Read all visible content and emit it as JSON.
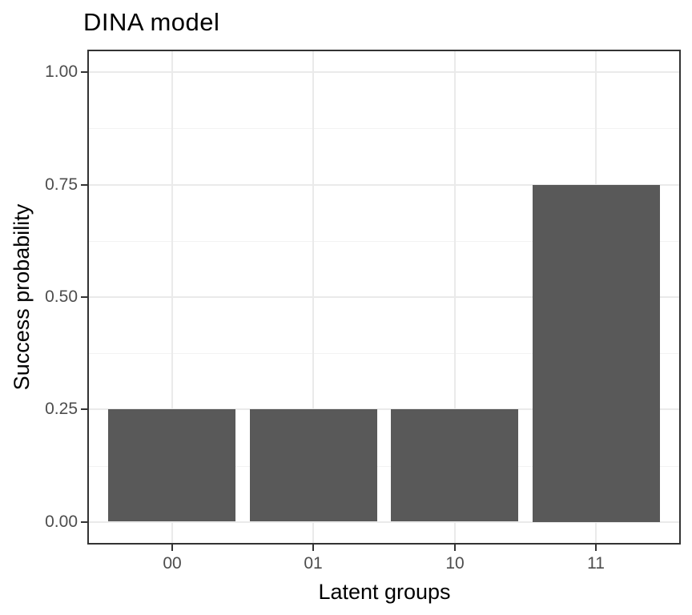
{
  "chart_data": {
    "type": "bar",
    "title": "DINA model",
    "xlabel": "Latent groups",
    "ylabel": "Success probability",
    "categories": [
      "00",
      "01",
      "10",
      "11"
    ],
    "values": [
      0.25,
      0.25,
      0.25,
      0.75
    ],
    "yticks": [
      0,
      0.25,
      0.5,
      0.75,
      1
    ],
    "ytick_labels": [
      "0.00",
      "0.25",
      "0.50",
      "0.75",
      "1.00"
    ],
    "yminor": [
      0.125,
      0.375,
      0.625,
      0.875
    ],
    "ylim": [
      -0.05,
      1.05
    ],
    "xlim": [
      0.4,
      4.6
    ],
    "bar_width": 0.9,
    "grid": true,
    "legend": "none",
    "colors": {
      "bar_fill": "#595959",
      "grid_major": "#eaeaea",
      "grid_minor": "#f2f2f2",
      "panel_border": "#333333",
      "tick_mark": "#333333",
      "tick_label": "#4d4d4d",
      "axis_title": "#000000",
      "title": "#000000",
      "background": "#ffffff"
    }
  }
}
